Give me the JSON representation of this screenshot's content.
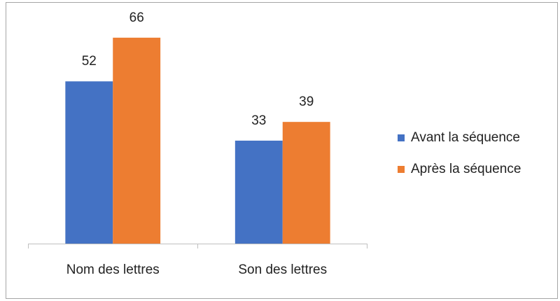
{
  "chart_data": {
    "type": "bar",
    "categories": [
      "Nom des lettres",
      "Son des lettres"
    ],
    "series": [
      {
        "name": "Avant la séquence",
        "color": "#4472c4",
        "values": [
          52,
          33
        ]
      },
      {
        "name": "Après la séquence",
        "color": "#ed7d31",
        "values": [
          66,
          39
        ]
      }
    ],
    "ylim": [
      0,
      70
    ],
    "legend": "right"
  }
}
